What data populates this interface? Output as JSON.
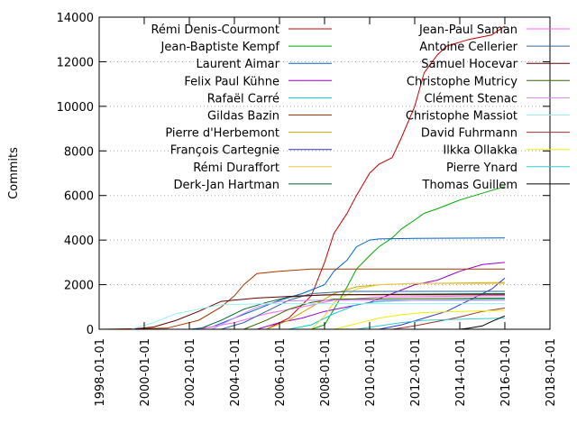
{
  "chart_data": {
    "type": "line",
    "title": "",
    "xlabel": "",
    "ylabel": "Commits",
    "xlim": [
      "1998-01-01",
      "2018-01-01"
    ],
    "ylim": [
      0,
      14000
    ],
    "x_ticks": [
      "1998-01-01",
      "2000-01-01",
      "2002-01-01",
      "2004-01-01",
      "2006-01-01",
      "2008-01-01",
      "2010-01-01",
      "2012-01-01",
      "2014-01-01",
      "2016-01-01",
      "2018-01-01"
    ],
    "y_ticks": [
      0,
      2000,
      4000,
      6000,
      8000,
      10000,
      12000,
      14000
    ],
    "grid": "horizontal-dotted",
    "legend_position": "top",
    "series": [
      {
        "name": "Rémi Denis-Courmont",
        "color": "#cc0000",
        "points": [
          [
            "2005-06-01",
            0
          ],
          [
            "2006-06-01",
            500
          ],
          [
            "2007-06-01",
            1500
          ],
          [
            "2008-01-01",
            3000
          ],
          [
            "2008-06-01",
            4300
          ],
          [
            "2009-01-01",
            5200
          ],
          [
            "2009-06-01",
            6000
          ],
          [
            "2010-01-01",
            7000
          ],
          [
            "2010-06-01",
            7400
          ],
          [
            "2011-01-01",
            7700
          ],
          [
            "2011-06-01",
            8600
          ],
          [
            "2012-01-01",
            10000
          ],
          [
            "2012-06-01",
            11500
          ],
          [
            "2013-01-01",
            12300
          ],
          [
            "2013-06-01",
            12700
          ],
          [
            "2014-06-01",
            13000
          ],
          [
            "2015-06-01",
            13200
          ],
          [
            "2016-01-01",
            13600
          ]
        ]
      },
      {
        "name": "Jean-Baptiste Kempf",
        "color": "#00aa00",
        "points": [
          [
            "2007-06-01",
            0
          ],
          [
            "2008-01-01",
            200
          ],
          [
            "2008-06-01",
            900
          ],
          [
            "2009-01-01",
            1900
          ],
          [
            "2009-06-01",
            2700
          ],
          [
            "2010-01-01",
            3300
          ],
          [
            "2010-06-01",
            3700
          ],
          [
            "2011-01-01",
            4100
          ],
          [
            "2011-06-01",
            4500
          ],
          [
            "2012-01-01",
            4900
          ],
          [
            "2012-06-01",
            5200
          ],
          [
            "2013-01-01",
            5400
          ],
          [
            "2014-01-01",
            5800
          ],
          [
            "2015-01-01",
            6100
          ],
          [
            "2016-01-01",
            6400
          ]
        ]
      },
      {
        "name": "Laurent Aimar",
        "color": "#0066cc",
        "points": [
          [
            "2002-01-01",
            0
          ],
          [
            "2003-01-01",
            100
          ],
          [
            "2004-01-01",
            500
          ],
          [
            "2005-01-01",
            900
          ],
          [
            "2006-01-01",
            1300
          ],
          [
            "2007-01-01",
            1600
          ],
          [
            "2008-01-01",
            2000
          ],
          [
            "2008-06-01",
            2600
          ],
          [
            "2009-01-01",
            3100
          ],
          [
            "2009-06-01",
            3700
          ],
          [
            "2010-01-01",
            4000
          ],
          [
            "2010-06-01",
            4050
          ],
          [
            "2012-01-01",
            4080
          ],
          [
            "2016-01-01",
            4100
          ]
        ]
      },
      {
        "name": "Felix Paul Kühne",
        "color": "#9900cc",
        "points": [
          [
            "2005-01-01",
            0
          ],
          [
            "2006-01-01",
            300
          ],
          [
            "2007-01-01",
            500
          ],
          [
            "2008-01-01",
            800
          ],
          [
            "2009-01-01",
            1000
          ],
          [
            "2010-01-01",
            1200
          ],
          [
            "2011-01-01",
            1600
          ],
          [
            "2012-01-01",
            2000
          ],
          [
            "2013-01-01",
            2200
          ],
          [
            "2014-01-01",
            2600
          ],
          [
            "2015-01-01",
            2900
          ],
          [
            "2016-01-01",
            3000
          ]
        ]
      },
      {
        "name": "Rafaël Carré",
        "color": "#00cccc",
        "points": [
          [
            "2006-06-01",
            0
          ],
          [
            "2007-06-01",
            200
          ],
          [
            "2008-06-01",
            700
          ],
          [
            "2009-06-01",
            1100
          ],
          [
            "2010-06-01",
            1250
          ],
          [
            "2012-01-01",
            1300
          ],
          [
            "2016-01-01",
            1350
          ]
        ]
      },
      {
        "name": "Gildas Bazin",
        "color": "#aa3300",
        "points": [
          [
            "1998-01-01",
            0
          ],
          [
            "2001-01-01",
            50
          ],
          [
            "2002-06-01",
            400
          ],
          [
            "2003-06-01",
            1000
          ],
          [
            "2004-01-01",
            1500
          ],
          [
            "2004-06-01",
            2000
          ],
          [
            "2005-01-01",
            2500
          ],
          [
            "2006-01-01",
            2600
          ],
          [
            "2007-06-01",
            2700
          ],
          [
            "2016-01-01",
            2700
          ]
        ]
      },
      {
        "name": "Pierre d'Herbemont",
        "color": "#ccaa00",
        "points": [
          [
            "2005-06-01",
            0
          ],
          [
            "2006-06-01",
            400
          ],
          [
            "2007-06-01",
            1000
          ],
          [
            "2008-06-01",
            1600
          ],
          [
            "2009-06-01",
            1900
          ],
          [
            "2010-06-01",
            2000
          ],
          [
            "2012-01-01",
            2050
          ],
          [
            "2016-01-01",
            2100
          ]
        ]
      },
      {
        "name": "François Cartegnie",
        "color": "#3333cc",
        "points": [
          [
            "2010-06-01",
            0
          ],
          [
            "2011-06-01",
            200
          ],
          [
            "2012-06-01",
            500
          ],
          [
            "2013-06-01",
            800
          ],
          [
            "2014-06-01",
            1300
          ],
          [
            "2015-06-01",
            1800
          ],
          [
            "2016-01-01",
            2300
          ]
        ]
      },
      {
        "name": "Rémi Duraffort",
        "color": "#eecc44",
        "points": [
          [
            "2007-06-01",
            0
          ],
          [
            "2008-01-01",
            600
          ],
          [
            "2008-06-01",
            1200
          ],
          [
            "2009-06-01",
            1800
          ],
          [
            "2010-06-01",
            2000
          ],
          [
            "2012-01-01",
            2050
          ],
          [
            "2016-01-01",
            2050
          ]
        ]
      },
      {
        "name": "Derk-Jan Hartman",
        "color": "#006633",
        "points": [
          [
            "2002-06-01",
            0
          ],
          [
            "2003-06-01",
            400
          ],
          [
            "2004-06-01",
            900
          ],
          [
            "2005-06-01",
            1200
          ],
          [
            "2006-06-01",
            1450
          ],
          [
            "2008-01-01",
            1550
          ],
          [
            "2016-01-01",
            1600
          ]
        ]
      },
      {
        "name": "Jean-Paul Saman",
        "color": "#ff66ff",
        "points": [
          [
            "2002-06-01",
            0
          ],
          [
            "2004-01-01",
            300
          ],
          [
            "2005-06-01",
            700
          ],
          [
            "2007-01-01",
            1000
          ],
          [
            "2008-06-01",
            1300
          ],
          [
            "2010-06-01",
            1450
          ],
          [
            "2016-01-01",
            1500
          ]
        ]
      },
      {
        "name": "Antoine Cellerier",
        "color": "#336699",
        "points": [
          [
            "2003-06-01",
            0
          ],
          [
            "2004-06-01",
            300
          ],
          [
            "2005-06-01",
            800
          ],
          [
            "2006-06-01",
            1300
          ],
          [
            "2007-06-01",
            1600
          ],
          [
            "2009-01-01",
            1700
          ],
          [
            "2016-01-01",
            1700
          ]
        ]
      },
      {
        "name": "Samuel Hocevar",
        "color": "#660000",
        "points": [
          [
            "1999-06-01",
            0
          ],
          [
            "2000-06-01",
            100
          ],
          [
            "2001-06-01",
            400
          ],
          [
            "2002-06-01",
            800
          ],
          [
            "2003-06-01",
            1250
          ],
          [
            "2005-01-01",
            1400
          ],
          [
            "2007-01-01",
            1500
          ],
          [
            "2008-06-01",
            1550
          ],
          [
            "2016-01-01",
            1550
          ]
        ]
      },
      {
        "name": "Christophe Mutricy",
        "color": "#336600",
        "points": [
          [
            "2004-06-01",
            0
          ],
          [
            "2005-06-01",
            400
          ],
          [
            "2006-06-01",
            900
          ],
          [
            "2007-06-01",
            1200
          ],
          [
            "2008-06-01",
            1350
          ],
          [
            "2016-01-01",
            1400
          ]
        ]
      },
      {
        "name": "Clément Stenac",
        "color": "#cc88ee",
        "points": [
          [
            "2003-01-01",
            0
          ],
          [
            "2004-01-01",
            500
          ],
          [
            "2005-01-01",
            1000
          ],
          [
            "2006-01-01",
            1250
          ],
          [
            "2007-06-01",
            1300
          ],
          [
            "2016-01-01",
            1300
          ]
        ]
      },
      {
        "name": "Christophe Massiot",
        "color": "#99eeee",
        "points": [
          [
            "1999-06-01",
            0
          ],
          [
            "2000-06-01",
            300
          ],
          [
            "2001-06-01",
            700
          ],
          [
            "2002-06-01",
            900
          ],
          [
            "2003-06-01",
            1100
          ],
          [
            "2005-06-01",
            1150
          ],
          [
            "2016-01-01",
            1150
          ]
        ]
      },
      {
        "name": "David Fuhrmann",
        "color": "#993333",
        "points": [
          [
            "2011-01-01",
            0
          ],
          [
            "2012-01-01",
            150
          ],
          [
            "2013-01-01",
            350
          ],
          [
            "2014-01-01",
            550
          ],
          [
            "2015-01-01",
            800
          ],
          [
            "2016-01-01",
            950
          ]
        ]
      },
      {
        "name": "Ilkka Ollakka",
        "color": "#eeee00",
        "points": [
          [
            "2008-06-01",
            0
          ],
          [
            "2009-06-01",
            250
          ],
          [
            "2010-06-01",
            500
          ],
          [
            "2011-06-01",
            650
          ],
          [
            "2012-06-01",
            750
          ],
          [
            "2014-01-01",
            800
          ],
          [
            "2016-01-01",
            850
          ]
        ]
      },
      {
        "name": "Pierre Ynard",
        "color": "#33cccc",
        "points": [
          [
            "2009-06-01",
            0
          ],
          [
            "2010-06-01",
            150
          ],
          [
            "2011-06-01",
            300
          ],
          [
            "2012-06-01",
            400
          ],
          [
            "2014-01-01",
            450
          ],
          [
            "2016-01-01",
            500
          ]
        ]
      },
      {
        "name": "Thomas Guillem",
        "color": "#000000",
        "points": [
          [
            "2014-01-01",
            0
          ],
          [
            "2014-06-01",
            50
          ],
          [
            "2015-01-01",
            150
          ],
          [
            "2015-06-01",
            350
          ],
          [
            "2016-01-01",
            600
          ]
        ]
      }
    ]
  }
}
